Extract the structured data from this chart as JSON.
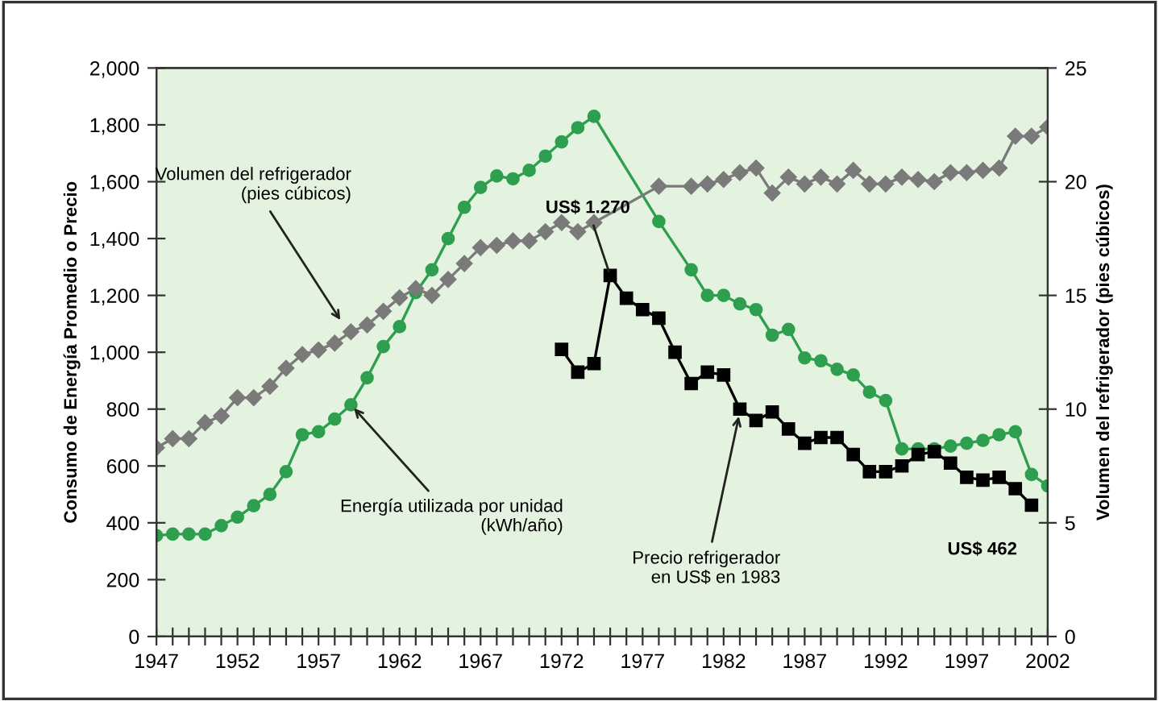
{
  "chart_data": {
    "type": "line",
    "ylabel": "Consumo de Energía Promedio o Precio",
    "y2label": "Volumen del refrigerador (pies cúbicos)",
    "xlim": [
      1947,
      2002
    ],
    "xticks": [
      1947,
      {
        "value": 1948,
        "label": null
      },
      {
        "value": 1949,
        "label": null
      },
      {
        "value": 1950,
        "label": null
      },
      {
        "value": 1951,
        "label": null
      },
      1952,
      {
        "value": 1953,
        "label": null
      },
      {
        "value": 1954,
        "label": null
      },
      {
        "value": 1955,
        "label": null
      },
      {
        "value": 1956,
        "label": null
      },
      1957,
      {
        "value": 1958,
        "label": null
      },
      {
        "value": 1959,
        "label": null
      },
      {
        "value": 1960,
        "label": null
      },
      {
        "value": 1961,
        "label": null
      },
      1962,
      {
        "value": 1963,
        "label": null
      },
      {
        "value": 1964,
        "label": null
      },
      {
        "value": 1965,
        "label": null
      },
      {
        "value": 1966,
        "label": null
      },
      1967,
      {
        "value": 1968,
        "label": null
      },
      {
        "value": 1969,
        "label": null
      },
      {
        "value": 1970,
        "label": null
      },
      {
        "value": 1971,
        "label": null
      },
      1972,
      {
        "value": 1973,
        "label": null
      },
      {
        "value": 1974,
        "label": null
      },
      {
        "value": 1975,
        "label": null
      },
      {
        "value": 1976,
        "label": null
      },
      1977,
      {
        "value": 1978,
        "label": null
      },
      {
        "value": 1979,
        "label": null
      },
      {
        "value": 1980,
        "label": null
      },
      {
        "value": 1981,
        "label": null
      },
      1982,
      {
        "value": 1983,
        "label": null
      },
      {
        "value": 1984,
        "label": null
      },
      {
        "value": 1985,
        "label": null
      },
      {
        "value": 1986,
        "label": null
      },
      1987,
      {
        "value": 1988,
        "label": null
      },
      {
        "value": 1989,
        "label": null
      },
      {
        "value": 1990,
        "label": null
      },
      {
        "value": 1991,
        "label": null
      },
      1992,
      {
        "value": 1993,
        "label": null
      },
      {
        "value": 1994,
        "label": null
      },
      {
        "value": 1995,
        "label": null
      },
      {
        "value": 1996,
        "label": null
      },
      1997,
      {
        "value": 1998,
        "label": null
      },
      {
        "value": 1999,
        "label": null
      },
      {
        "value": 2000,
        "label": null
      },
      {
        "value": 2001,
        "label": null
      },
      2002
    ],
    "ylim": [
      0,
      2000
    ],
    "yticks": [
      0,
      200,
      400,
      600,
      800,
      {
        "value": 1000,
        "label": "1,000"
      },
      {
        "value": 1200,
        "label": "1,200"
      },
      {
        "value": 1400,
        "label": "1,400"
      },
      {
        "value": 1600,
        "label": "1,600"
      },
      {
        "value": 1800,
        "label": "1,800"
      },
      {
        "value": 2000,
        "label": "2,000"
      }
    ],
    "y2lim": [
      0,
      25
    ],
    "y2ticks": [
      0,
      5,
      10,
      15,
      20,
      25
    ],
    "grid": false,
    "series": [
      {
        "color": "#2e9e4f",
        "marker": "circle",
        "x": [
          1947,
          1948,
          1949,
          1950,
          1951,
          1952,
          1953,
          1954,
          1955,
          1956,
          1957,
          1958,
          1959,
          1960,
          1961,
          1962,
          1963,
          1964,
          1965,
          1966,
          1967,
          1968,
          1969,
          1970,
          1971,
          1972,
          1973,
          1974,
          1978,
          1980,
          1981,
          1982,
          1983,
          1984,
          1985,
          1986,
          1987,
          1988,
          1989,
          1990,
          1991,
          1992,
          1993,
          1994,
          1995,
          1996,
          1997,
          1998,
          1999,
          2000,
          2001,
          2002
        ],
        "values": [
          355,
          360,
          360,
          360,
          390,
          420,
          460,
          500,
          580,
          710,
          720,
          765,
          815,
          910,
          1020,
          1090,
          1210,
          1290,
          1400,
          1510,
          1580,
          1620,
          1610,
          1640,
          1690,
          1740,
          1790,
          1830,
          1460,
          1290,
          1200,
          1200,
          1170,
          1150,
          1060,
          1080,
          980,
          970,
          940,
          920,
          860,
          830,
          660,
          660,
          660,
          670,
          680,
          690,
          710,
          720,
          570,
          530
        ]
      },
      {
        "color": "#7a7a7a",
        "marker": "diamond",
        "axis": "y2",
        "x": [
          1947,
          1948,
          1949,
          1950,
          1951,
          1952,
          1953,
          1954,
          1955,
          1956,
          1957,
          1958,
          1959,
          1960,
          1961,
          1962,
          1963,
          1964,
          1965,
          1966,
          1967,
          1968,
          1969,
          1970,
          1971,
          1972,
          1973,
          1974,
          1978,
          1980,
          1981,
          1982,
          1983,
          1984,
          1985,
          1986,
          1987,
          1988,
          1989,
          1990,
          1991,
          1992,
          1993,
          1994,
          1995,
          1996,
          1997,
          1998,
          1999,
          2000,
          2001,
          2002
        ],
        "values": [
          8.3,
          8.7,
          8.7,
          9.4,
          9.7,
          10.5,
          10.5,
          11.0,
          11.8,
          12.4,
          12.6,
          12.9,
          13.4,
          13.7,
          14.3,
          14.9,
          15.3,
          15.0,
          15.7,
          16.4,
          17.1,
          17.2,
          17.4,
          17.4,
          17.8,
          18.2,
          17.8,
          18.2,
          19.8,
          19.8,
          19.9,
          20.1,
          20.4,
          20.6,
          19.5,
          20.2,
          19.9,
          20.2,
          19.9,
          20.5,
          19.9,
          19.9,
          20.2,
          20.1,
          20.0,
          20.4,
          20.4,
          20.5,
          20.6,
          22.0,
          22.0,
          22.4
        ]
      },
      {
        "color": "#000000",
        "marker": "square",
        "x": [
          1972,
          1973,
          1974,
          1975,
          1976,
          1977,
          1978,
          1979,
          1980,
          1981,
          1982,
          1983,
          1984,
          1985,
          1986,
          1987,
          1988,
          1989,
          1990,
          1991,
          1992,
          1993,
          1994,
          1995,
          1996,
          1997,
          1998,
          1999,
          2000,
          2001
        ],
        "values": [
          1010,
          930,
          960,
          1270,
          1190,
          1150,
          1120,
          1000,
          890,
          930,
          920,
          800,
          760,
          790,
          730,
          680,
          700,
          700,
          640,
          580,
          580,
          600,
          640,
          650,
          610,
          560,
          550,
          560,
          520,
          462
        ]
      }
    ],
    "annotations": [
      {
        "text": "Volumen del refrigerador\n(pies cúbicos)",
        "x": 1958.5,
        "y": 1100
      },
      {
        "text": "Energía utilizada por unidad\n(kWh/año)",
        "x": 1959,
        "y": 815
      },
      {
        "text": "Precio refrigerador\nen US$ en 1983",
        "x": 1983,
        "y": 790
      },
      {
        "text": "US$ 1.270",
        "x": 1975,
        "y": 1270
      },
      {
        "text": "US$ 462",
        "x": 2001,
        "y": 462
      }
    ]
  }
}
